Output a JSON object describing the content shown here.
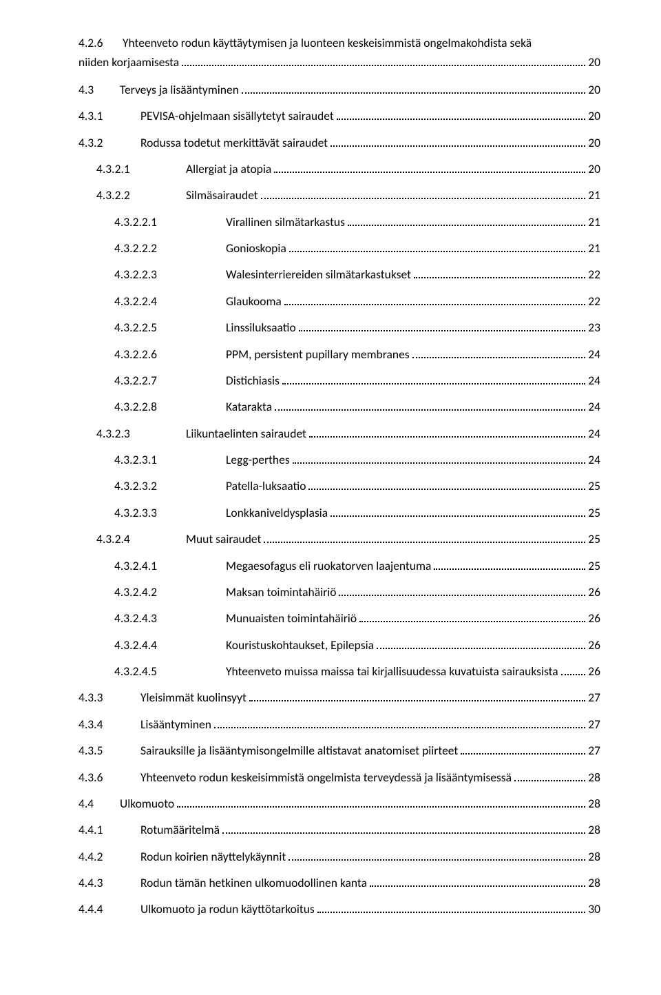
{
  "toc": [
    {
      "type": "multiline",
      "num": "4.2.6",
      "text1": "Yhteenveto rodun käyttäytymisen ja luonteen keskeisimmistä ongelmakohdista sekä",
      "text2": "niiden korjaamisesta",
      "page": "20"
    },
    {
      "type": "line",
      "indent": "indent-1",
      "num": "4.3",
      "text": "Terveys ja lisääntyminen",
      "page": "20"
    },
    {
      "type": "line",
      "indent": "indent-2",
      "num": "4.3.1",
      "text": "PEVISA-ohjelmaan sisällytetyt sairaudet",
      "page": "20"
    },
    {
      "type": "line",
      "indent": "indent-2",
      "num": "4.3.2",
      "text": "Rodussa todetut merkittävät sairaudet",
      "page": "20"
    },
    {
      "type": "line",
      "indent": "indent-3",
      "num": "4.3.2.1",
      "text": "Allergiat ja atopia",
      "page": "20"
    },
    {
      "type": "line",
      "indent": "indent-3",
      "num": "4.3.2.2",
      "text": "Silmäsairaudet",
      "page": "21"
    },
    {
      "type": "line",
      "indent": "indent-4",
      "num": "4.3.2.2.1",
      "text": "Virallinen silmätarkastus",
      "page": "21"
    },
    {
      "type": "line",
      "indent": "indent-4",
      "num": "4.3.2.2.2",
      "text": "Gonioskopia",
      "page": "21"
    },
    {
      "type": "line",
      "indent": "indent-4",
      "num": "4.3.2.2.3",
      "text": "Walesinterriereiden silmätarkastukset",
      "page": "22"
    },
    {
      "type": "line",
      "indent": "indent-4",
      "num": "4.3.2.2.4",
      "text": "Glaukooma",
      "page": "22"
    },
    {
      "type": "line",
      "indent": "indent-4",
      "num": "4.3.2.2.5",
      "text": "Linssiluksaatio",
      "page": "23"
    },
    {
      "type": "line",
      "indent": "indent-4",
      "num": "4.3.2.2.6",
      "text": "PPM, persistent pupillary membranes",
      "page": "24"
    },
    {
      "type": "line",
      "indent": "indent-4",
      "num": "4.3.2.2.7",
      "text": "Distichiasis",
      "page": "24"
    },
    {
      "type": "line",
      "indent": "indent-4",
      "num": "4.3.2.2.8",
      "text": "Katarakta",
      "page": "24"
    },
    {
      "type": "line",
      "indent": "indent-3",
      "num": "4.3.2.3",
      "text": "Liikuntaelinten sairaudet",
      "page": "24"
    },
    {
      "type": "line",
      "indent": "indent-4",
      "num": "4.3.2.3.1",
      "text": "Legg-perthes",
      "page": "24"
    },
    {
      "type": "line",
      "indent": "indent-4",
      "num": "4.3.2.3.2",
      "text": "Patella-luksaatio",
      "page": "25"
    },
    {
      "type": "line",
      "indent": "indent-4",
      "num": "4.3.2.3.3",
      "text": "Lonkkaniveldysplasia",
      "page": "25"
    },
    {
      "type": "line",
      "indent": "indent-3",
      "num": "4.3.2.4",
      "text": "Muut sairaudet",
      "page": "25"
    },
    {
      "type": "line",
      "indent": "indent-4",
      "num": "4.3.2.4.1",
      "text": "Megaesofagus eli ruokatorven laajentuma",
      "page": "25"
    },
    {
      "type": "line",
      "indent": "indent-4",
      "num": "4.3.2.4.2",
      "text": "Maksan toimintahäiriö",
      "page": "26"
    },
    {
      "type": "line",
      "indent": "indent-4",
      "num": "4.3.2.4.3",
      "text": "Munuaisten toimintahäiriö",
      "page": "26"
    },
    {
      "type": "line",
      "indent": "indent-4",
      "num": "4.3.2.4.4",
      "text": "Kouristuskohtaukset, Epilepsia",
      "page": "26"
    },
    {
      "type": "line",
      "indent": "indent-4",
      "num": "4.3.2.4.5",
      "text": "Yhteenveto muissa maissa tai kirjallisuudessa kuvatuista sairauksista",
      "page": "26"
    },
    {
      "type": "line",
      "indent": "indent-2",
      "num": "4.3.3",
      "text": "Yleisimmät kuolinsyyt",
      "page": "27"
    },
    {
      "type": "line",
      "indent": "indent-2",
      "num": "4.3.4",
      "text": "Lisääntyminen",
      "page": "27"
    },
    {
      "type": "line",
      "indent": "indent-2",
      "num": "4.3.5",
      "text": "Sairauksille ja lisääntymisongelmille altistavat anatomiset piirteet",
      "page": "27"
    },
    {
      "type": "line",
      "indent": "indent-2",
      "num": "4.3.6",
      "text": "Yhteenveto rodun keskeisimmistä ongelmista terveydessä ja lisääntymisessä",
      "page": "28"
    },
    {
      "type": "line",
      "indent": "indent-1",
      "num": "4.4",
      "text": "Ulkomuoto",
      "page": "28"
    },
    {
      "type": "line",
      "indent": "indent-2",
      "num": "4.4.1",
      "text": "Rotumääritelmä",
      "page": "28"
    },
    {
      "type": "line",
      "indent": "indent-2",
      "num": "4.4.2",
      "text": "Rodun koirien näyttelykäynnit",
      "page": "28"
    },
    {
      "type": "line",
      "indent": "indent-2",
      "num": "4.4.3",
      "text": "Rodun tämän hetkinen ulkomuodollinen kanta",
      "page": "28"
    },
    {
      "type": "line",
      "indent": "indent-2",
      "num": "4.4.4",
      "text": "Ulkomuoto ja rodun käyttötarkoitus",
      "page": "30"
    }
  ]
}
